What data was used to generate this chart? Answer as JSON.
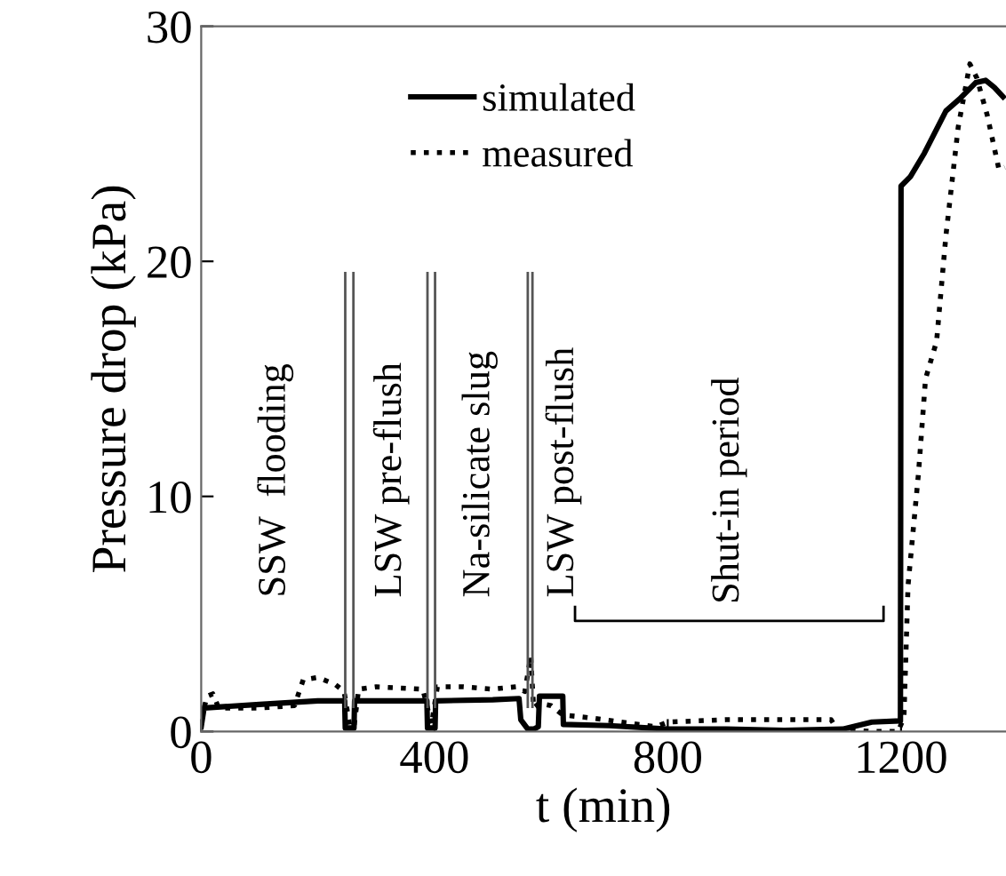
{
  "chart_data": {
    "type": "line",
    "xlabel": "t (min)",
    "ylabel": "Pressure drop (kPa)",
    "xlim": [
      0,
      1380
    ],
    "ylim": [
      0,
      30
    ],
    "xticks": [
      0,
      400,
      800,
      1200
    ],
    "yticks": [
      0,
      10,
      20,
      30
    ],
    "grid": false,
    "legend": "top",
    "marker": "none",
    "series": [
      {
        "name": "simulated",
        "color": "#000000",
        "line_style": "solid",
        "x": [
          0,
          5,
          100,
          200,
          246,
          247,
          262,
          263,
          300,
          387,
          388,
          401,
          402,
          500,
          545,
          548,
          560,
          570,
          578,
          580,
          620,
          621,
          700,
          800,
          900,
          1000,
          1100,
          1150,
          1199,
          1200,
          1216,
          1240,
          1277,
          1300,
          1328,
          1345,
          1360,
          1375
        ],
        "values": [
          0.2,
          1.0,
          1.15,
          1.3,
          1.3,
          0.15,
          0.15,
          1.3,
          1.3,
          1.3,
          0.15,
          0.15,
          1.3,
          1.35,
          1.4,
          0.5,
          0.1,
          0.1,
          0.2,
          1.5,
          1.5,
          0.3,
          0.25,
          0.1,
          0.1,
          0.05,
          0.1,
          0.4,
          0.45,
          23.2,
          23.6,
          24.6,
          26.4,
          26.9,
          27.6,
          27.7,
          27.4,
          27.0
        ]
      },
      {
        "type": "line",
        "color": "#000000",
        "line_style": "solid",
        "x": [
          641,
          641,
          1170,
          1170
        ],
        "values": [
          5.3,
          4.7,
          4.7,
          5.3
        ]
      },
      {
        "name": "measured",
        "color": "#000000",
        "line_style": "dotted",
        "x": [
          0,
          10,
          20,
          30,
          100,
          160,
          175,
          200,
          230,
          245,
          255,
          262,
          270,
          300,
          380,
          395,
          405,
          450,
          500,
          540,
          555,
          565,
          570,
          580,
          600,
          620,
          660,
          720,
          780,
          800,
          900,
          1000,
          1080,
          1090,
          1150,
          1195,
          1205,
          1212,
          1230,
          1242,
          1261,
          1277,
          1298,
          1318,
          1330,
          1348,
          1368,
          1378
        ],
        "values": [
          0.5,
          1.5,
          1.6,
          1.0,
          1.0,
          1.1,
          2.2,
          2.3,
          2.0,
          1.7,
          0.2,
          0.2,
          1.8,
          1.9,
          1.8,
          0.3,
          1.9,
          1.9,
          1.8,
          1.9,
          1.7,
          3.2,
          1.0,
          1.2,
          1.1,
          0.7,
          0.6,
          0.4,
          0.2,
          0.4,
          0.5,
          0.5,
          0.5,
          0.1,
          0.0,
          0.0,
          0.6,
          6.2,
          11.0,
          15.0,
          16.6,
          21.1,
          25.7,
          28.4,
          27.8,
          26.2,
          23.9,
          24.0
        ]
      }
    ],
    "ref_lines": [
      {
        "axis": "x",
        "value": 247
      },
      {
        "axis": "x",
        "value": 261
      },
      {
        "axis": "x",
        "value": 388
      },
      {
        "axis": "x",
        "value": 401
      },
      {
        "axis": "x",
        "value": 560
      },
      {
        "axis": "x",
        "value": 568
      }
    ],
    "annotations": [
      "SSW  flooding",
      "LSW pre-flush",
      "Na-silicate slug",
      "LSW post-flush",
      {
        "text": "Shut-in period",
        "x": 905,
        "y": 5
      }
    ]
  }
}
